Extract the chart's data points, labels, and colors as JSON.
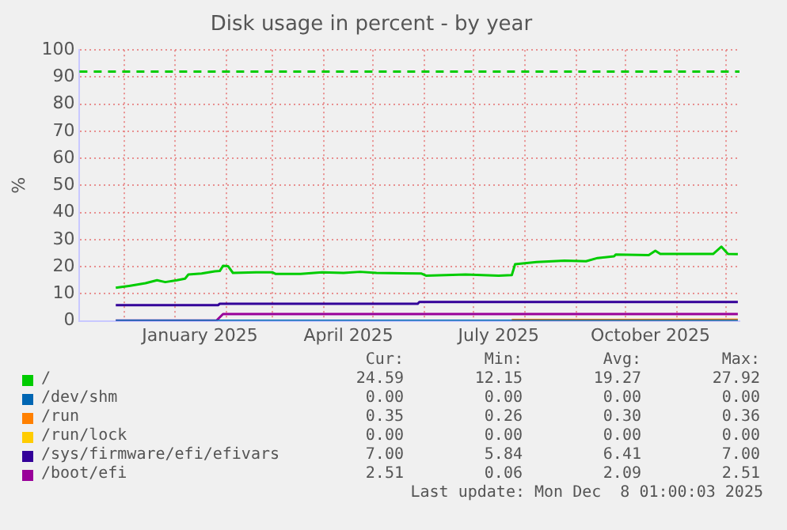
{
  "chart_data": {
    "type": "line",
    "title": "Disk usage in percent - by year",
    "ylabel": "%",
    "xlim": [
      "2024-11-04",
      "2025-12-09"
    ],
    "xticks": [
      {
        "value": "2024-12-01",
        "label": null
      },
      {
        "value": "2025-01-01",
        "label": null
      },
      {
        "value": "2025-01-16",
        "label": "January 2025"
      },
      {
        "value": "2025-02-01",
        "label": null
      },
      {
        "value": "2025-03-01",
        "label": null
      },
      {
        "value": "2025-04-01",
        "label": null
      },
      {
        "value": "2025-04-16",
        "label": "April 2025"
      },
      {
        "value": "2025-05-01",
        "label": null
      },
      {
        "value": "2025-06-01",
        "label": null
      },
      {
        "value": "2025-07-01",
        "label": null
      },
      {
        "value": "2025-07-16",
        "label": "July 2025"
      },
      {
        "value": "2025-08-01",
        "label": null
      },
      {
        "value": "2025-09-01",
        "label": null
      },
      {
        "value": "2025-10-01",
        "label": null
      },
      {
        "value": "2025-10-16",
        "label": "October 2025"
      },
      {
        "value": "2025-11-01",
        "label": null
      },
      {
        "value": "2025-12-01",
        "label": null
      }
    ],
    "ylim": [
      0,
      100
    ],
    "yticks": [
      0,
      10,
      20,
      30,
      40,
      50,
      60,
      70,
      80,
      90,
      100
    ],
    "grid": true,
    "legend": "bottom",
    "marker": "none",
    "line_style": "solid",
    "series": [
      {
        "name": "/",
        "color": "#00cc00",
        "x": [
          "2024-11-26",
          "2024-12-04",
          "2024-12-14",
          "2024-12-21",
          "2024-12-26",
          "2025-01-02",
          "2025-01-07",
          "2025-01-09",
          "2025-01-17",
          "2025-01-25",
          "2025-01-28",
          "2025-01-30",
          "2025-02-02",
          "2025-02-05",
          "2025-02-19",
          "2025-03-01",
          "2025-03-03",
          "2025-03-18",
          "2025-03-31",
          "2025-04-13",
          "2025-04-23",
          "2025-05-03",
          "2025-05-30",
          "2025-06-02",
          "2025-06-26",
          "2025-07-16",
          "2025-07-24",
          "2025-07-26",
          "2025-08-08",
          "2025-08-25",
          "2025-09-07",
          "2025-09-14",
          "2025-09-24",
          "2025-09-25",
          "2025-10-15",
          "2025-10-19",
          "2025-10-22",
          "2025-11-23",
          "2025-11-28",
          "2025-12-02",
          "2025-12-08"
        ],
        "values": [
          12.2,
          12.9,
          13.9,
          15.0,
          14.3,
          15.0,
          15.6,
          17.1,
          17.5,
          18.3,
          18.4,
          20.3,
          20.2,
          17.7,
          17.9,
          17.9,
          17.3,
          17.3,
          17.9,
          17.7,
          18.1,
          17.7,
          17.5,
          16.7,
          17.1,
          16.7,
          16.9,
          20.9,
          21.7,
          22.2,
          22.0,
          23.2,
          23.8,
          24.5,
          24.3,
          25.9,
          24.7,
          24.7,
          27.4,
          24.7,
          24.6
        ]
      },
      {
        "name": "/dev/shm",
        "color": "#0066b3",
        "x": [
          "2024-11-26",
          "2025-12-08"
        ],
        "values": [
          0,
          0
        ]
      },
      {
        "name": "/run",
        "color": "#ff8000",
        "x": [
          "2025-07-24",
          "2025-12-08"
        ],
        "values": [
          0.3,
          0.4
        ]
      },
      {
        "name": "/run/lock",
        "color": "#ffcc00"
      },
      {
        "name": "/sys/firmware/efi/efivars",
        "color": "#330099",
        "x": [
          "2024-11-26",
          "2025-01-27",
          "2025-01-28",
          "2025-05-28",
          "2025-05-29",
          "2025-12-08"
        ],
        "values": [
          5.8,
          5.8,
          6.3,
          6.3,
          7.0,
          7.0
        ]
      },
      {
        "name": "/boot/efi",
        "color": "#990099",
        "x": [
          "2024-11-26",
          "2025-01-26",
          "2025-01-30",
          "2025-12-08"
        ],
        "values": [
          0.1,
          0.1,
          2.5,
          2.5
        ]
      }
    ],
    "ref_lines": [
      {
        "axis": "y",
        "value": 92,
        "color": "#00cc00",
        "line_style": "dashed"
      }
    ],
    "annotations": [
      "Cur:",
      "Min:",
      "Avg:",
      "Max:",
      "24.59",
      "12.15",
      "19.27",
      "27.92",
      "0.00",
      "0.00",
      "0.00",
      "0.00",
      "0.35",
      "0.26",
      "0.30",
      "0.36",
      "0.00",
      "0.00",
      "0.00",
      "0.00",
      "7.00",
      "5.84",
      "6.41",
      "7.00",
      "2.51",
      "0.06",
      "2.09",
      "2.51",
      "Last update: Mon Dec  8 01:00:03 2025"
    ]
  }
}
